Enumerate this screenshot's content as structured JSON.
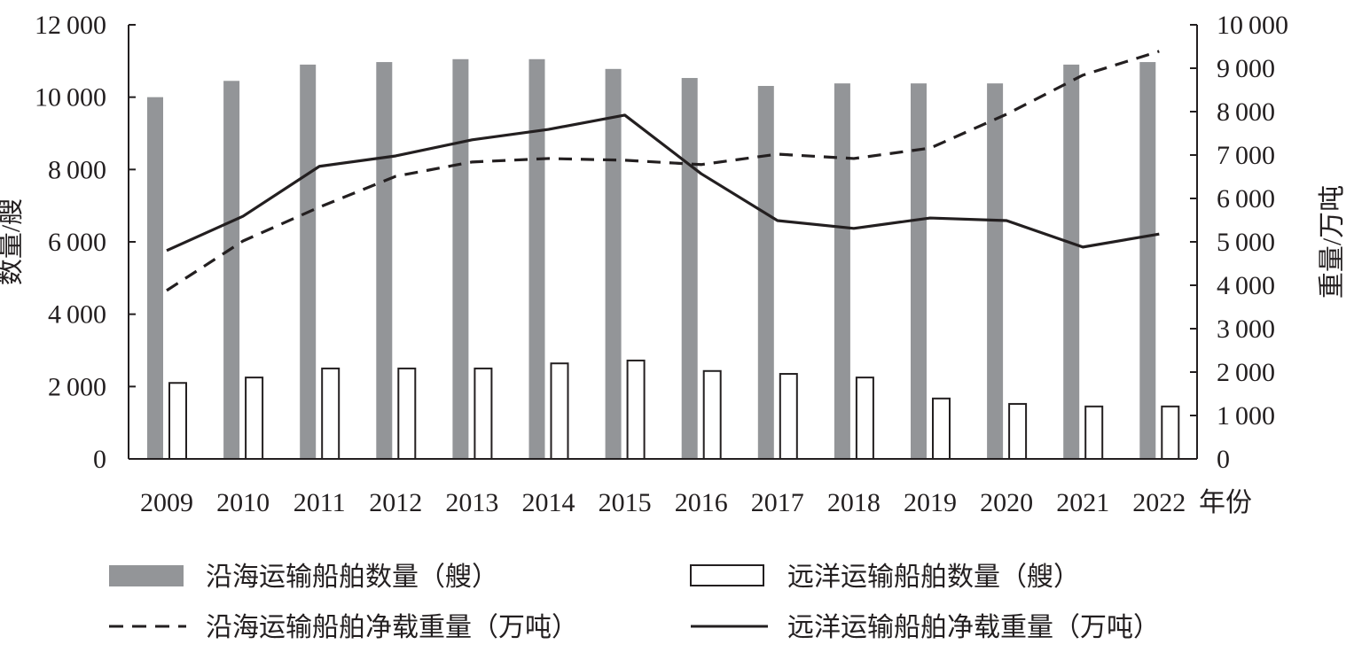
{
  "chart_data": {
    "type": "bar",
    "categories": [
      "2009",
      "2010",
      "2011",
      "2012",
      "2013",
      "2014",
      "2015",
      "2016",
      "2017",
      "2018",
      "2019",
      "2020",
      "2021",
      "2022"
    ],
    "xlabel": "年份",
    "ylabel": "数量/艘",
    "y2label": "重量/万吨",
    "ylim": [
      0,
      12000
    ],
    "y2lim": [
      0,
      10000
    ],
    "yticks": [
      0,
      2000,
      4000,
      6000,
      8000,
      10000,
      12000
    ],
    "y2ticks": [
      0,
      1000,
      2000,
      3000,
      4000,
      5000,
      6000,
      7000,
      8000,
      9000,
      10000
    ],
    "grid": false,
    "legend_position": "bottom",
    "series": [
      {
        "name": "沿海运输船舶数量（艘）",
        "type": "bar",
        "axis": "left",
        "color": "#939598",
        "values": [
          10000,
          10450,
          10900,
          10970,
          11050,
          11050,
          10780,
          10530,
          10310,
          10380,
          10380,
          10380,
          10900,
          10970
        ]
      },
      {
        "name": "远洋运输船舶数量（艘）",
        "type": "bar",
        "axis": "left",
        "color": "#ffffff",
        "values": [
          2100,
          2250,
          2500,
          2500,
          2500,
          2640,
          2720,
          2430,
          2350,
          2250,
          1670,
          1520,
          1450,
          1450
        ]
      },
      {
        "name": "沿海运输船舶净载重量（万吨）",
        "type": "line",
        "style": "dashed",
        "axis": "right",
        "color": "#231f20",
        "values": [
          3880,
          5020,
          5800,
          6510,
          6840,
          6920,
          6880,
          6780,
          7020,
          6920,
          7160,
          7940,
          8840,
          9390
        ]
      },
      {
        "name": "远洋运输船舶净载重量（万吨）",
        "type": "line",
        "style": "solid",
        "axis": "right",
        "color": "#231f20",
        "values": [
          4800,
          5590,
          6740,
          6980,
          7350,
          7590,
          7920,
          6570,
          5490,
          5310,
          5550,
          5490,
          4880,
          5180
        ]
      }
    ]
  }
}
